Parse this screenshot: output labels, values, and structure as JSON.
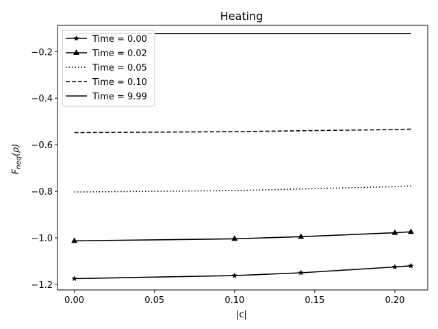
{
  "chart_data": {
    "type": "line",
    "title": "Heating",
    "xlabel": "|c|",
    "ylabel_main": "F",
    "ylabel_sub": "neq",
    "ylabel_arg": "(ρ)",
    "xlim": [
      -0.0105,
      0.2205
    ],
    "ylim": [
      -1.2236,
      -0.0874
    ],
    "x_ticks": [
      0.0,
      0.05,
      0.1,
      0.15,
      0.2
    ],
    "x_tick_labels": [
      "0.00",
      "0.05",
      "0.10",
      "0.15",
      "0.20"
    ],
    "y_ticks": [
      -1.2,
      -1.0,
      -0.8,
      -0.6,
      -0.4,
      -0.2
    ],
    "y_tick_labels": [
      "−1.2",
      "−1.0",
      "−0.8",
      "−0.6",
      "−0.4",
      "−0.2"
    ],
    "grid": false,
    "legend_position": "top-left",
    "series": [
      {
        "name": "Time = 0.00",
        "style": "solid",
        "marker": "star",
        "color": "#000000",
        "x": [
          0.0,
          0.1,
          0.1414,
          0.2,
          0.21
        ],
        "y": [
          -1.175,
          -1.162,
          -1.15,
          -1.125,
          -1.12
        ]
      },
      {
        "name": "Time = 0.02",
        "style": "solid",
        "marker": "triangle",
        "color": "#000000",
        "x": [
          0.0,
          0.1,
          0.1414,
          0.2,
          0.21
        ],
        "y": [
          -1.013,
          -1.004,
          -0.995,
          -0.978,
          -0.974
        ]
      },
      {
        "name": "Time = 0.05",
        "style": "dotted",
        "marker": "none",
        "color": "#000000",
        "x": [
          0.0,
          0.1,
          0.1414,
          0.2,
          0.21
        ],
        "y": [
          -0.803,
          -0.797,
          -0.79,
          -0.78,
          -0.777
        ]
      },
      {
        "name": "Time = 0.10",
        "style": "dashed",
        "marker": "none",
        "color": "#000000",
        "x": [
          0.0,
          0.1,
          0.1414,
          0.2,
          0.21
        ],
        "y": [
          -0.548,
          -0.544,
          -0.54,
          -0.535,
          -0.533
        ]
      },
      {
        "name": "Time = 9.99",
        "style": "solid",
        "marker": "none",
        "color": "#000000",
        "x": [
          0.0,
          0.1,
          0.1414,
          0.2,
          0.21
        ],
        "y": [
          -0.122,
          -0.122,
          -0.122,
          -0.122,
          -0.122
        ]
      }
    ]
  }
}
